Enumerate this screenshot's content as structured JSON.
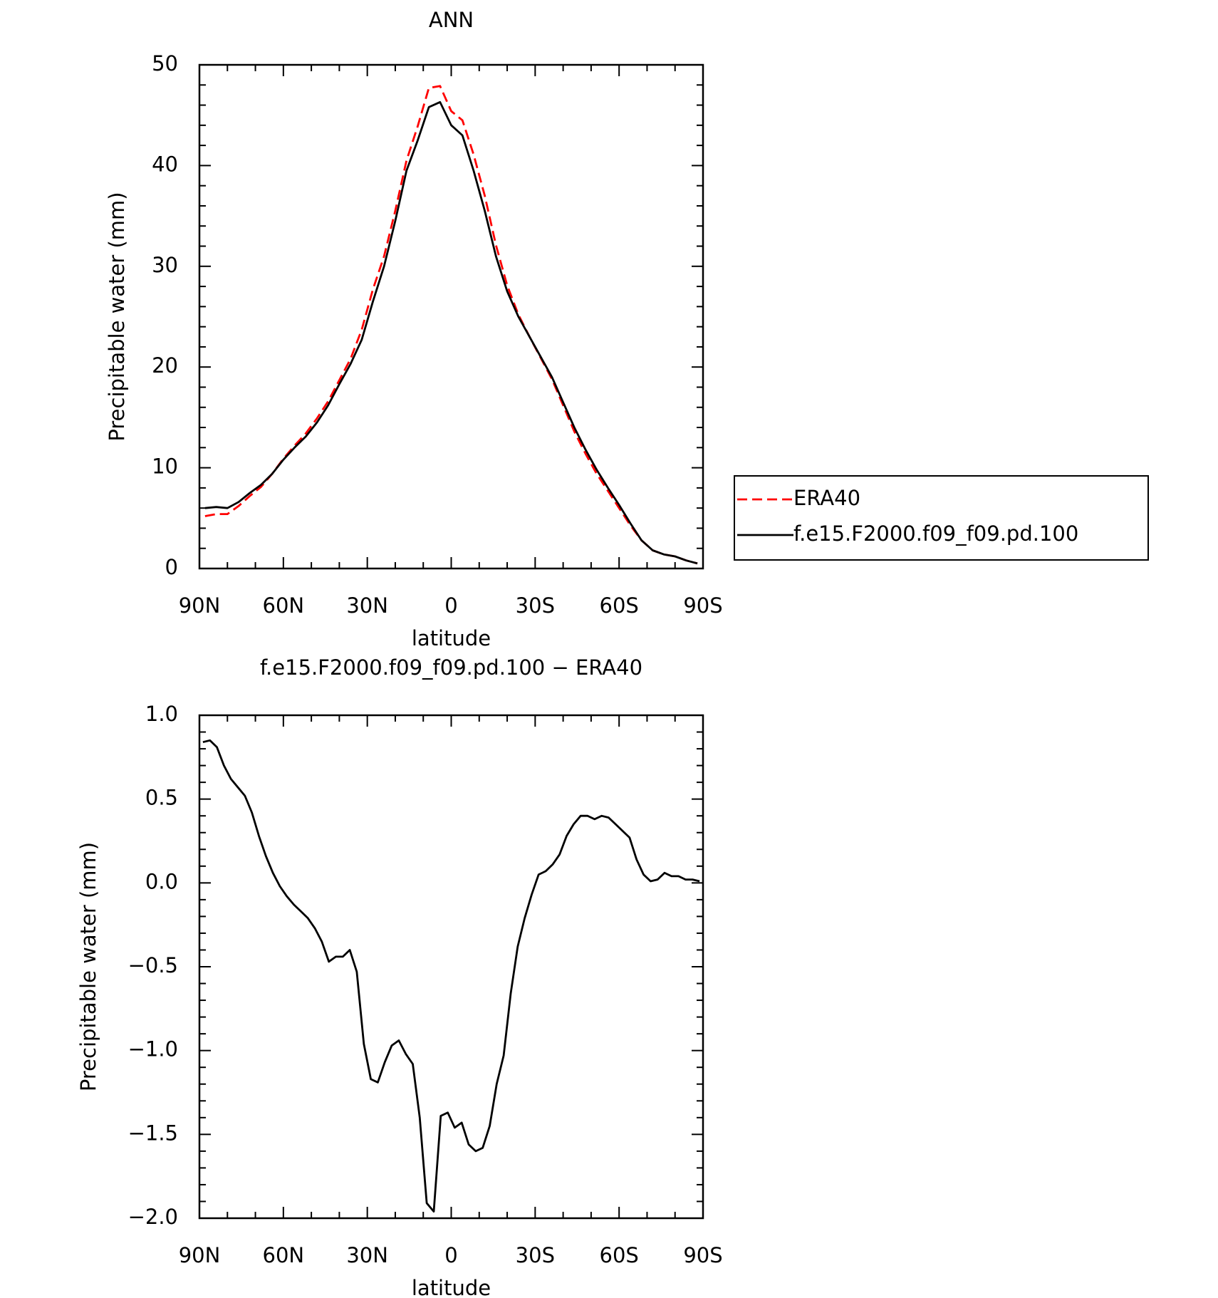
{
  "chart_data": [
    {
      "type": "line",
      "title": "ANN",
      "xlabel": "latitude",
      "ylabel": "Precipitable water (mm)",
      "x": [
        88,
        84,
        80,
        76,
        72,
        68,
        64,
        60,
        56,
        52,
        48,
        44,
        40,
        36,
        32,
        28,
        24,
        20,
        16,
        12,
        8,
        4,
        0,
        -4,
        -8,
        -12,
        -16,
        -20,
        -24,
        -28,
        -32,
        -36,
        -40,
        -44,
        -48,
        -52,
        -56,
        -60,
        -64,
        -68,
        -72,
        -76,
        -80,
        -84,
        -88
      ],
      "series": [
        {
          "name": "ERA40",
          "color": "#ff0000",
          "dash": true,
          "values": [
            5.2,
            5.4,
            5.4,
            6.2,
            7.2,
            8.1,
            9.4,
            10.9,
            12.2,
            13.4,
            14.9,
            16.6,
            18.7,
            20.8,
            23.7,
            27.7,
            31.0,
            35.5,
            40.5,
            43.9,
            47.7,
            47.9,
            45.4,
            44.5,
            41.1,
            37.0,
            32.1,
            28.1,
            25.2,
            23.0,
            20.9,
            18.8,
            16.2,
            13.6,
            11.4,
            9.4,
            7.7,
            6.0,
            4.3,
            2.8,
            1.8,
            1.4,
            1.2,
            0.8,
            0.5
          ]
        },
        {
          "name": "f.e15.F2000.f09_f09.pd.100",
          "color": "#000000",
          "dash": false,
          "values": [
            6.0,
            6.1,
            6.0,
            6.6,
            7.5,
            8.3,
            9.4,
            10.8,
            12.0,
            13.1,
            14.5,
            16.2,
            18.3,
            20.3,
            22.7,
            26.5,
            30.0,
            34.5,
            39.5,
            42.5,
            45.8,
            46.3,
            44.0,
            43.0,
            39.5,
            35.5,
            31.0,
            27.5,
            25.0,
            23.0,
            21.0,
            19.0,
            16.5,
            14.0,
            11.8,
            9.8,
            8.0,
            6.3,
            4.5,
            2.8,
            1.8,
            1.4,
            1.2,
            0.8,
            0.5
          ]
        }
      ],
      "xlim": [
        90,
        -90
      ],
      "xticks": [
        {
          "value": 90,
          "label": "90N"
        },
        {
          "value": 60,
          "label": "60N"
        },
        {
          "value": 30,
          "label": "30N"
        },
        0,
        {
          "value": -30,
          "label": "30S"
        },
        {
          "value": -60,
          "label": "60S"
        },
        {
          "value": -90,
          "label": "90S"
        }
      ],
      "ylim": [
        0,
        50
      ],
      "yticks": [
        0,
        10,
        20,
        30,
        40,
        50
      ],
      "legend": "outside-right"
    },
    {
      "type": "line",
      "title": "f.e15.F2000.f09_f09.pd.100 − ERA40",
      "xlabel": "latitude",
      "ylabel": "Precipitable water (mm)",
      "x": [
        88.75,
        86.25,
        83.75,
        81.25,
        78.75,
        76.25,
        73.75,
        71.25,
        68.75,
        66.25,
        63.75,
        61.25,
        58.75,
        56.25,
        53.75,
        51.25,
        48.75,
        46.25,
        43.75,
        41.25,
        38.75,
        36.25,
        33.75,
        31.25,
        28.75,
        26.25,
        23.75,
        21.25,
        18.75,
        16.25,
        13.75,
        11.25,
        8.75,
        6.25,
        3.75,
        1.25,
        -1.25,
        -3.75,
        -6.25,
        -8.75,
        -11.25,
        -13.75,
        -16.25,
        -18.75,
        -21.25,
        -23.75,
        -26.25,
        -28.75,
        -31.25,
        -33.75,
        -36.25,
        -38.75,
        -41.25,
        -43.75,
        -46.25,
        -48.75,
        -51.25,
        -53.75,
        -56.25,
        -58.75,
        -61.25,
        -63.75,
        -66.25,
        -68.75,
        -71.25,
        -73.75,
        -76.25,
        -78.75,
        -81.25,
        -83.75,
        -86.25,
        -88.75
      ],
      "series": [
        {
          "color": "#000000",
          "dash": false,
          "values": [
            0.84,
            0.85,
            0.81,
            0.7,
            0.62,
            0.57,
            0.52,
            0.42,
            0.28,
            0.16,
            0.06,
            -0.02,
            -0.08,
            -0.13,
            -0.17,
            -0.21,
            -0.27,
            -0.35,
            -0.47,
            -0.44,
            -0.44,
            -0.4,
            -0.53,
            -0.96,
            -1.17,
            -1.19,
            -1.07,
            -0.97,
            -0.94,
            -1.02,
            -1.08,
            -1.4,
            -1.91,
            -1.96,
            -1.39,
            -1.37,
            -1.46,
            -1.43,
            -1.56,
            -1.6,
            -1.58,
            -1.45,
            -1.2,
            -1.03,
            -0.66,
            -0.38,
            -0.21,
            -0.07,
            0.05,
            0.07,
            0.11,
            0.17,
            0.28,
            0.35,
            0.4,
            0.4,
            0.38,
            0.4,
            0.39,
            0.35,
            0.31,
            0.27,
            0.14,
            0.05,
            0.01,
            0.02,
            0.06,
            0.04,
            0.04,
            0.02,
            0.02,
            0.01
          ]
        }
      ],
      "xlim": [
        90,
        -90
      ],
      "xticks": [
        {
          "value": 90,
          "label": "90N"
        },
        {
          "value": 60,
          "label": "60N"
        },
        {
          "value": 30,
          "label": "30N"
        },
        0,
        {
          "value": -30,
          "label": "30S"
        },
        {
          "value": -60,
          "label": "60S"
        },
        {
          "value": -90,
          "label": "90S"
        }
      ],
      "ylim": [
        -2,
        1
      ],
      "yticks": [
        {
          "value": -2,
          "label": "−2.0"
        },
        {
          "value": -1.5,
          "label": "−1.5"
        },
        {
          "value": -1,
          "label": "−1.0"
        },
        {
          "value": -0.5,
          "label": "−0.5"
        },
        {
          "value": 0,
          "label": "0.0"
        },
        {
          "value": 0.5,
          "label": "0.5"
        },
        {
          "value": 1,
          "label": "1.0"
        }
      ]
    }
  ]
}
